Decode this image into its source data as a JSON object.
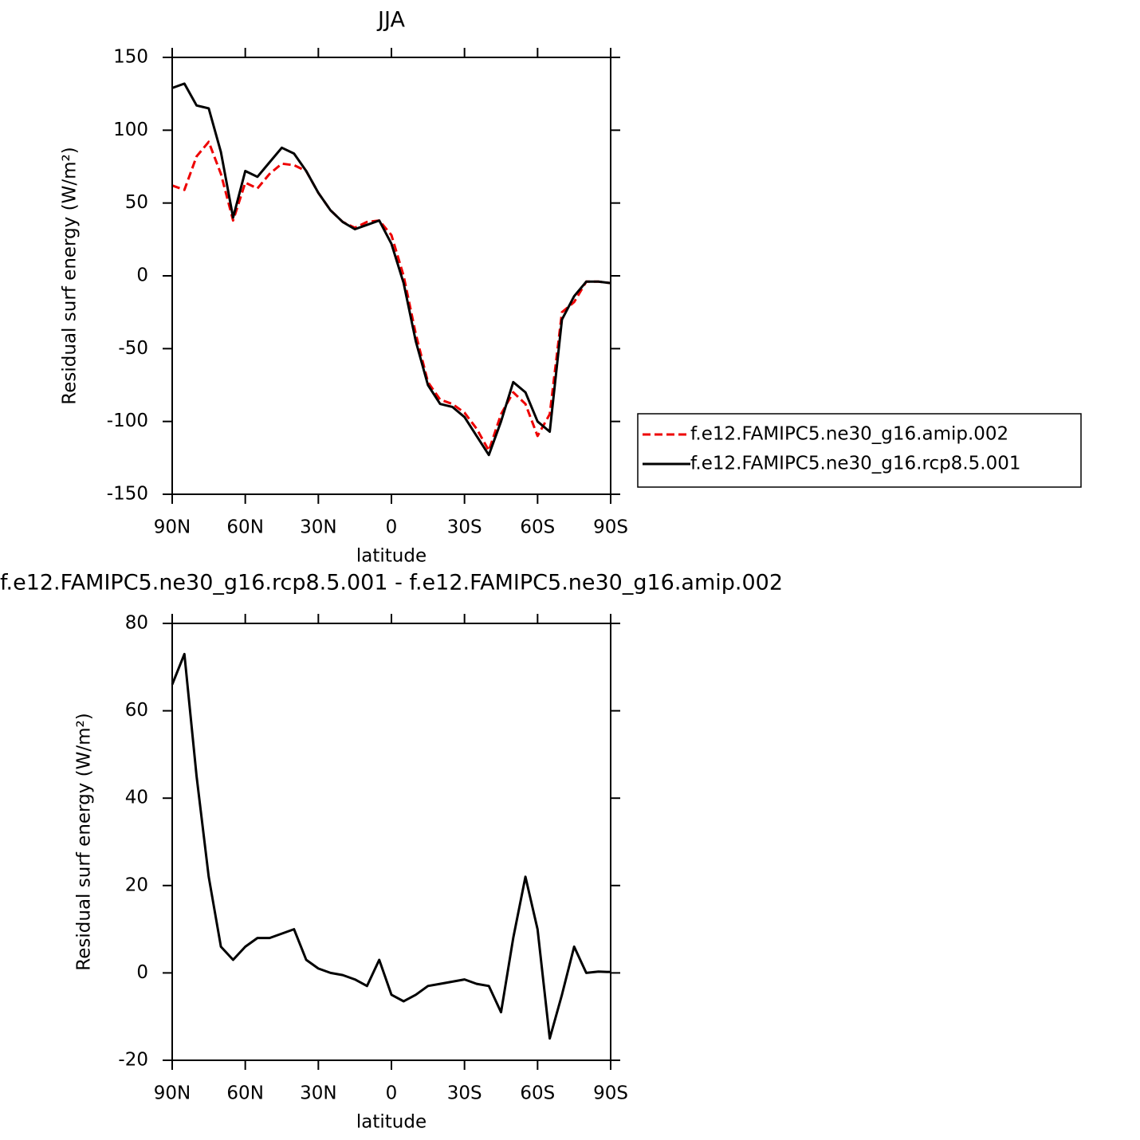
{
  "chart_data": [
    {
      "type": "line",
      "title": "JJA",
      "xlabel": "latitude",
      "ylabel": "Residual surf energy (W/m²)",
      "x": [
        90,
        85,
        80,
        75,
        70,
        65,
        60,
        55,
        50,
        45,
        40,
        35,
        30,
        25,
        20,
        15,
        10,
        5,
        0,
        -5,
        -10,
        -15,
        -20,
        -25,
        -30,
        -35,
        -40,
        -45,
        -50,
        -55,
        -60,
        -65,
        -70,
        -75,
        -80,
        -85,
        -90
      ],
      "xlim": [
        90,
        -90
      ],
      "xticks": [
        {
          "value": 90,
          "label": "90N"
        },
        {
          "value": 60,
          "label": "60N"
        },
        {
          "value": 30,
          "label": "30N"
        },
        0,
        {
          "value": -30,
          "label": "30S"
        },
        {
          "value": -60,
          "label": "60S"
        },
        {
          "value": -90,
          "label": "90S"
        }
      ],
      "ylim": [
        -150,
        150
      ],
      "yticks": [
        -150,
        -100,
        -50,
        0,
        50,
        100,
        150
      ],
      "legend": "right",
      "series": [
        {
          "name": "f.e12.FAMIPC5.ne30_g16.amip.002",
          "color": "#ee0000",
          "linestyle": "dashed",
          "values": [
            62,
            59,
            82,
            92,
            70,
            38,
            64,
            60,
            70,
            77,
            76,
            72,
            57,
            45,
            37,
            33,
            37,
            38,
            28,
            0,
            -40,
            -73,
            -85,
            -88,
            -94,
            -105,
            -120,
            -95,
            -80,
            -88,
            -110,
            -95,
            -25,
            -18,
            -4,
            -4,
            -5
          ]
        },
        {
          "name": "f.e12.FAMIPC5.ne30_g16.rcp8.5.001",
          "color": "#000000",
          "linestyle": "solid",
          "values": [
            129,
            132,
            117,
            115,
            85,
            40,
            72,
            68,
            78,
            88,
            84,
            72,
            57,
            45,
            37,
            32,
            35,
            38,
            22,
            -5,
            -45,
            -75,
            -88,
            -90,
            -97,
            -110,
            -123,
            -100,
            -73,
            -80,
            -100,
            -107,
            -30,
            -14,
            -4,
            -4,
            -5
          ]
        }
      ]
    },
    {
      "type": "line",
      "title": "f.e12.FAMIPC5.ne30_g16.rcp8.5.001 - f.e12.FAMIPC5.ne30_g16.amip.002",
      "xlabel": "latitude",
      "ylabel": "Residual surf energy (W/m²)",
      "x": [
        90,
        85,
        80,
        75,
        70,
        65,
        60,
        55,
        50,
        45,
        40,
        35,
        30,
        25,
        20,
        15,
        10,
        5,
        0,
        -5,
        -10,
        -15,
        -20,
        -25,
        -30,
        -35,
        -40,
        -45,
        -50,
        -55,
        -60,
        -65,
        -70,
        -75,
        -80,
        -85,
        -90
      ],
      "xlim": [
        90,
        -90
      ],
      "xticks": [
        {
          "value": 90,
          "label": "90N"
        },
        {
          "value": 60,
          "label": "60N"
        },
        {
          "value": 30,
          "label": "30N"
        },
        0,
        {
          "value": -30,
          "label": "30S"
        },
        {
          "value": -60,
          "label": "60S"
        },
        {
          "value": -90,
          "label": "90S"
        }
      ],
      "ylim": [
        -20,
        80
      ],
      "yticks": [
        -20,
        0,
        20,
        40,
        60,
        80
      ],
      "series": [
        {
          "color": "#000000",
          "linestyle": "solid",
          "values": [
            66,
            73,
            45,
            22,
            6,
            3,
            6,
            8,
            8,
            9,
            10,
            3,
            1,
            0,
            -0.5,
            -1.5,
            -3,
            3,
            -5,
            -6.5,
            -5,
            -3,
            -2.5,
            -2,
            -1.5,
            -2.5,
            -3,
            -9,
            8,
            22,
            10,
            -15,
            -5,
            6,
            0,
            0.3,
            0.2
          ]
        }
      ]
    }
  ]
}
